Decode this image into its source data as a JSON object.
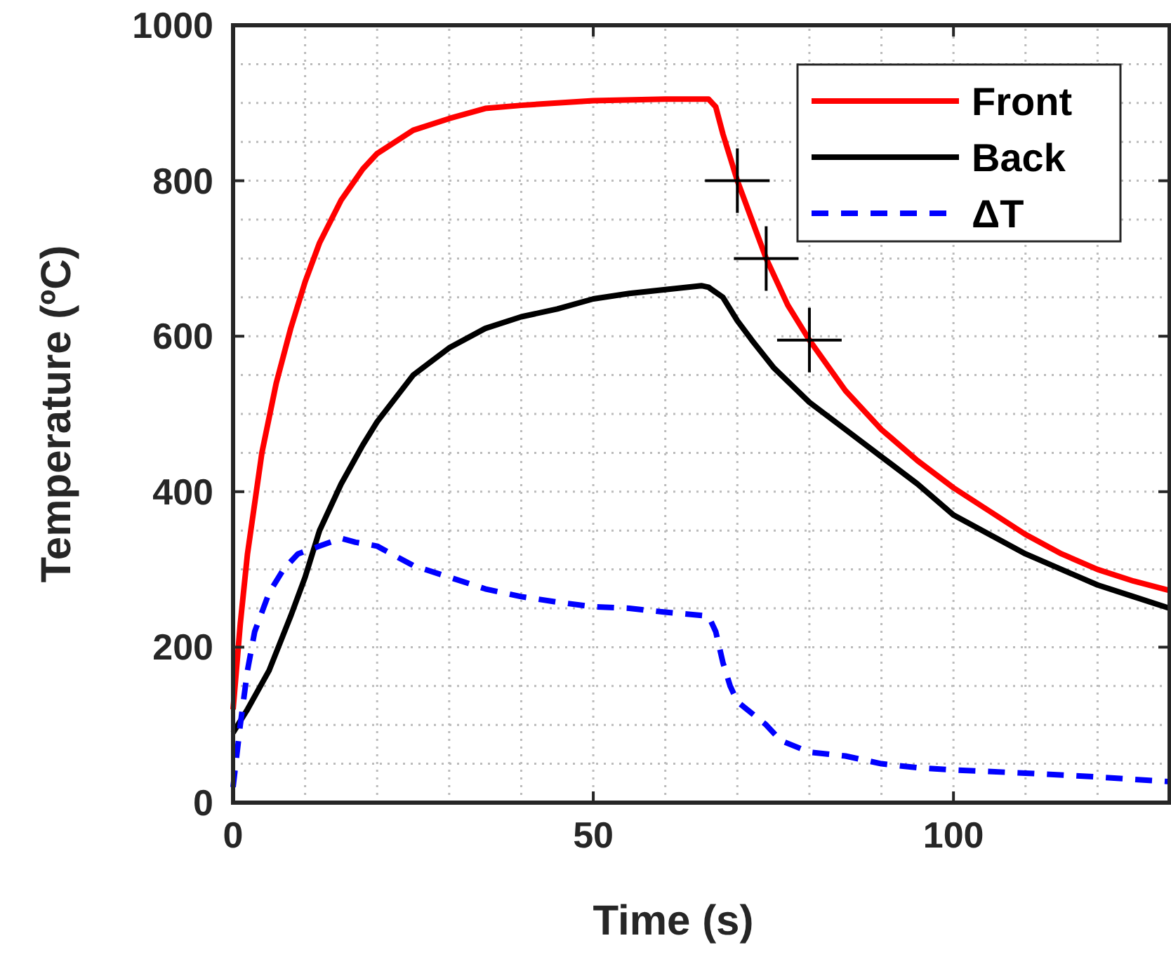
{
  "chart_data": {
    "type": "line",
    "xlabel": "Time (s)",
    "ylabel": "Temperature (ºC)",
    "xlim": [
      0,
      130
    ],
    "ylim": [
      0,
      1000
    ],
    "xticks": [
      0,
      50,
      100
    ],
    "yticks": [
      0,
      200,
      400,
      600,
      800,
      1000
    ],
    "grid": true,
    "legend": "top right",
    "series": [
      {
        "name": "Front",
        "color": "#ff0000",
        "line_style": "solid",
        "x": [
          0,
          1,
          2,
          4,
          6,
          8,
          10,
          12,
          15,
          18,
          20,
          25,
          30,
          35,
          40,
          50,
          60,
          66,
          67,
          68,
          70,
          72,
          74,
          77,
          80,
          85,
          90,
          95,
          100,
          105,
          110,
          115,
          120,
          125,
          130
        ],
        "values": [
          120,
          230,
          320,
          450,
          540,
          610,
          670,
          720,
          775,
          815,
          835,
          865,
          880,
          893,
          897,
          903,
          905,
          905,
          895,
          860,
          800,
          750,
          700,
          640,
          595,
          530,
          480,
          440,
          405,
          375,
          345,
          320,
          300,
          285,
          273
        ]
      },
      {
        "name": "Back",
        "color": "#000000",
        "line_style": "solid",
        "x": [
          0,
          2,
          5,
          8,
          10,
          12,
          15,
          18,
          20,
          25,
          30,
          35,
          40,
          45,
          50,
          55,
          60,
          65,
          66,
          68,
          70,
          72,
          75,
          80,
          85,
          90,
          95,
          100,
          105,
          110,
          115,
          120,
          125,
          130
        ],
        "values": [
          90,
          120,
          170,
          240,
          290,
          350,
          410,
          460,
          490,
          550,
          585,
          610,
          625,
          635,
          648,
          655,
          660,
          665,
          663,
          650,
          620,
          595,
          560,
          515,
          480,
          445,
          410,
          370,
          345,
          320,
          300,
          280,
          265,
          250
        ]
      },
      {
        "name": "ΔT",
        "color": "#0000ff",
        "line_style": "dashed",
        "x": [
          0,
          1,
          2,
          3,
          5,
          7,
          9,
          12,
          15,
          17,
          20,
          23,
          25,
          30,
          35,
          40,
          45,
          50,
          55,
          60,
          66,
          67,
          68,
          69,
          70,
          72,
          74,
          76,
          80,
          85,
          90,
          95,
          100,
          110,
          120,
          130
        ],
        "values": [
          20,
          100,
          170,
          220,
          270,
          300,
          320,
          330,
          340,
          335,
          330,
          315,
          305,
          290,
          275,
          265,
          258,
          252,
          250,
          245,
          240,
          220,
          180,
          150,
          130,
          115,
          100,
          80,
          65,
          60,
          50,
          45,
          42,
          38,
          33,
          27
        ]
      },
      {
        "type": "scatter",
        "marker": "cross",
        "color": "#000000",
        "x": [
          70,
          74,
          80
        ],
        "values": [
          800,
          700,
          595
        ]
      }
    ]
  }
}
